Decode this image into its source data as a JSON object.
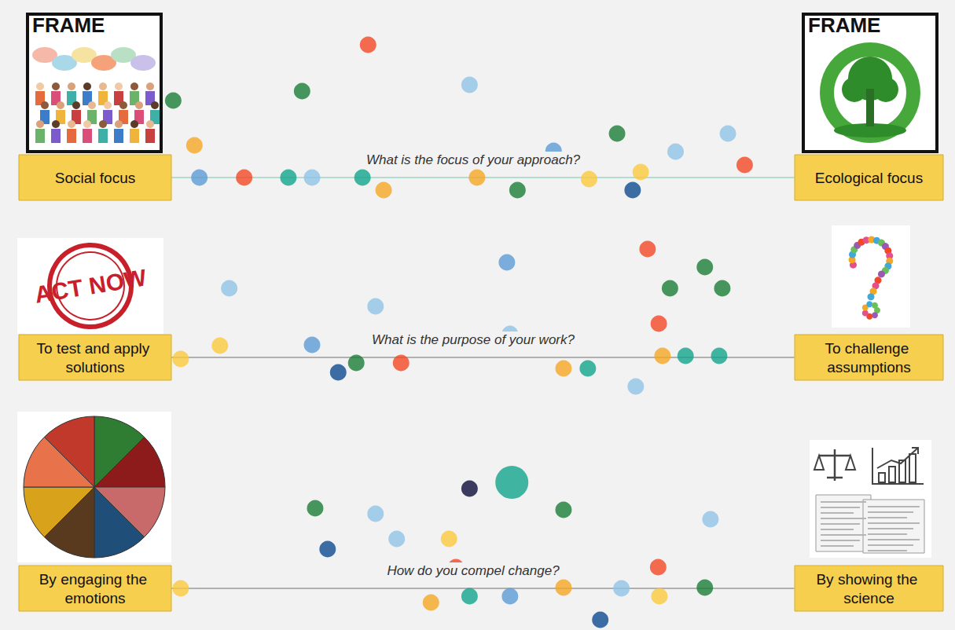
{
  "chart_data": [
    {
      "type": "scatter",
      "title": "What is the focus of your approach?",
      "annotations": {
        "left": "Social focus",
        "right": "Ecological focus"
      },
      "image_texts": {
        "left": "FRAME",
        "right": "FRAME"
      },
      "xlim": [
        0,
        100
      ],
      "ylim": [
        -30,
        200
      ],
      "tick_labels": false,
      "grid": false,
      "marker": "circle",
      "x": [
        31.6,
        0.3,
        21.0,
        47.9,
        3.7,
        61.4,
        71.6,
        81.0,
        89.4,
        92.1,
        75.4,
        4.5,
        11.7,
        18.8,
        22.6,
        30.7,
        34.1,
        49.1,
        55.6,
        67.1,
        74.1
      ],
      "values": [
        169,
        98,
        110,
        118,
        41,
        34,
        56,
        33,
        56,
        16,
        7,
        0,
        0,
        0,
        0,
        0,
        -16,
        0,
        -16,
        -2,
        -16
      ],
      "colors": [
        "#f24726",
        "#1a7d36",
        "#1a7d36",
        "#8fc3e6",
        "#f5a623",
        "#5b9bd5",
        "#1a7d36",
        "#8fc3e6",
        "#8fc3e6",
        "#f24726",
        "#fbc93d",
        "#5b9bd5",
        "#f24726",
        "#12a58c",
        "#8fc3e6",
        "#12a58c",
        "#f5a623",
        "#f5a623",
        "#1a7d36",
        "#fbc93d",
        "#0d4a8f"
      ]
    },
    {
      "type": "scatter",
      "title": "What is the purpose of your work?",
      "annotations": {
        "left": "To test and apply solutions",
        "right": "To challenge assumptions"
      },
      "image_texts": {
        "left": "ACT NOW"
      },
      "xlim": [
        0,
        100
      ],
      "ylim": [
        -45,
        150
      ],
      "tick_labels": false,
      "grid": false,
      "marker": "circle",
      "x": [
        85.7,
        80.1,
        88.5,
        76.5,
        78.3,
        36.9,
        53.9,
        22.6,
        9.3,
        32.8,
        54.4,
        74.6,
        1.5,
        7.8,
        26.8,
        29.7,
        63.0,
        78.9,
        66.9,
        82.6,
        88.0
      ],
      "values": [
        115,
        88,
        88,
        138,
        43,
        -7,
        121,
        16,
        88,
        65,
        30,
        -37,
        -2,
        15,
        -19,
        -7,
        -14,
        2,
        -14,
        2,
        2
      ],
      "colors": [
        "#1a7d36",
        "#1a7d36",
        "#1a7d36",
        "#f24726",
        "#f24726",
        "#f24726",
        "#5b9bd5",
        "#5b9bd5",
        "#8fc3e6",
        "#8fc3e6",
        "#8fc3e6",
        "#8fc3e6",
        "#fbc93d",
        "#fbc93d",
        "#0d4a8f",
        "#1a7d36",
        "#f5a623",
        "#f5a623",
        "#12a58c",
        "#12a58c",
        "#12a58c"
      ]
    },
    {
      "type": "scatter",
      "title": "How do you compel change?",
      "annotations": {
        "left": "By engaging the emotions",
        "right": "By showing the science"
      },
      "xlim": [
        0,
        100
      ],
      "ylim": [
        -50,
        190
      ],
      "tick_labels": false,
      "grid": false,
      "marker": "circle",
      "x": [
        47.9,
        23.1,
        63.0,
        32.8,
        36.2,
        86.6,
        44.6,
        25.1,
        45.7,
        78.2,
        1.5,
        41.7,
        47.9,
        54.4,
        63.0,
        72.3,
        78.4,
        85.7,
        68.9,
        54.7
      ],
      "values": [
        127,
        102,
        100,
        95,
        63,
        88,
        63,
        50,
        27,
        27,
        0,
        -18,
        -10,
        -10,
        1,
        0,
        -10,
        1,
        -40,
        135
      ],
      "colors": [
        "#0b0c38",
        "#1a7d36",
        "#1a7d36",
        "#8fc3e6",
        "#8fc3e6",
        "#8fc3e6",
        "#fbc93d",
        "#0d4a8f",
        "#f24726",
        "#f24726",
        "#fbc93d",
        "#f5a623",
        "#12a58c",
        "#5b9bd5",
        "#f5a623",
        "#8fc3e6",
        "#fbc93d",
        "#1a7d36",
        "#0d4a8f",
        "#12a58c"
      ],
      "sizes": [
        1,
        1,
        1,
        1,
        1,
        1,
        1,
        1,
        1,
        1,
        1,
        1,
        1,
        1,
        1,
        1,
        1,
        1,
        1,
        2
      ]
    }
  ]
}
